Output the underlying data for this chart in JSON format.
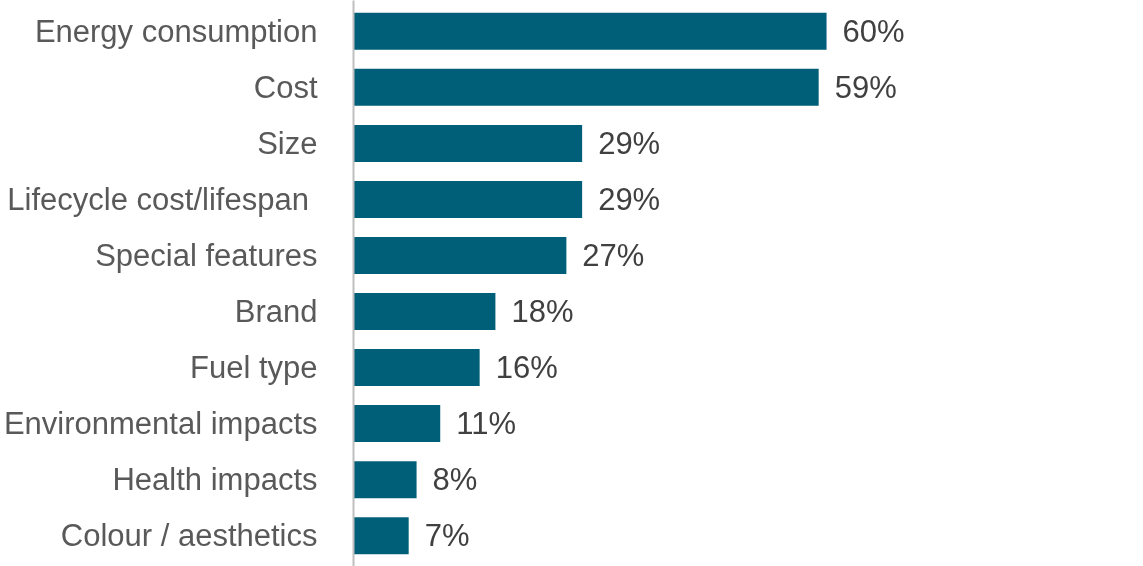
{
  "chart_data": {
    "type": "bar",
    "orientation": "horizontal",
    "categories": [
      "Energy consumption",
      "Cost",
      "Size",
      "Lifecycle cost/lifespan ",
      "Special features",
      "Brand",
      "Fuel type",
      "Environmental impacts",
      "Health impacts",
      "Colour / aesthetics"
    ],
    "values": [
      60,
      59,
      29,
      29,
      27,
      18,
      16,
      11,
      8,
      7
    ],
    "color": "#005f78",
    "value_labels": [
      "60%",
      "59%",
      "29%",
      "29%",
      "27%",
      "18%",
      "16%",
      "11%",
      "8%",
      "7%"
    ]
  }
}
